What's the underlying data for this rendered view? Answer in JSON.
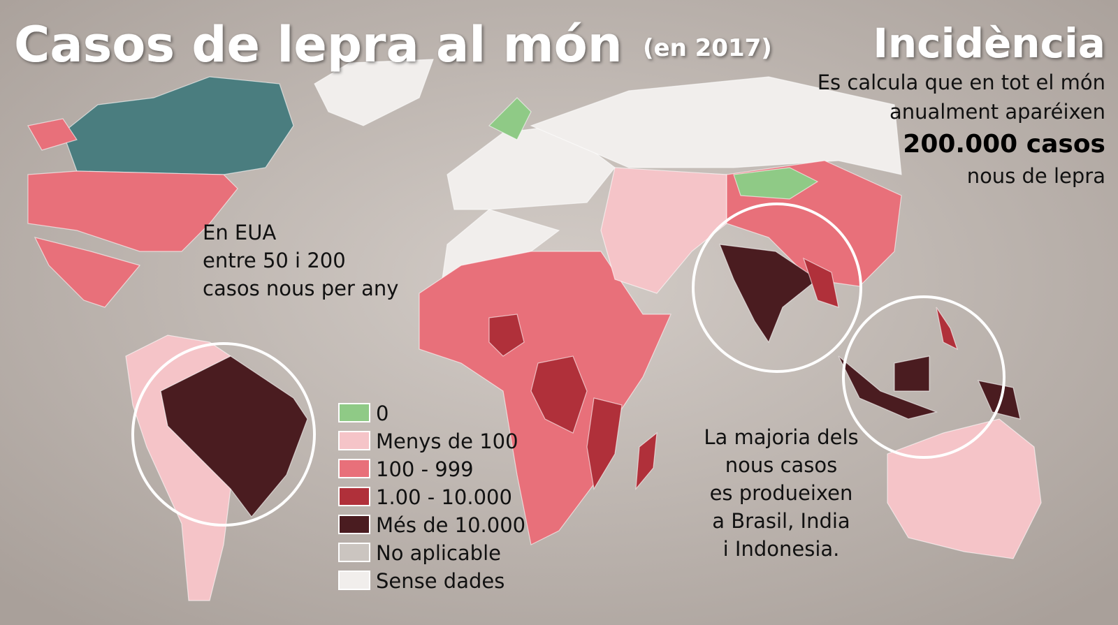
{
  "header": {
    "title": "Casos de lepra al món",
    "subtitle": "(en 2017)"
  },
  "incidence": {
    "title": "Incidència",
    "lines": [
      "Es calcula que en tot el món",
      "anualment aparéixen",
      "200.000 casos",
      "nous de lepra"
    ]
  },
  "notes": [
    {
      "lines": [
        "En EUA",
        "entre 50 i 200",
        "casos nous per any"
      ]
    },
    {
      "lines": [
        "La majoria dels",
        "nous casos",
        "es produeixen",
        "a Brasil, India",
        "i Indonesia."
      ]
    }
  ],
  "legend": {
    "items": [
      {
        "label": "0",
        "color": "#8fca86"
      },
      {
        "label": "Menys de 100",
        "color": "#f5c4c8"
      },
      {
        "label": "100 - 999",
        "color": "#e8707a"
      },
      {
        "label": "1.00 - 10.000",
        "color": "#b0303a"
      },
      {
        "label": "Més de 10.000",
        "color": "#4a1c20"
      },
      {
        "label": "No aplicable",
        "color": "#cbc5c0"
      },
      {
        "label": "Sense dades",
        "color": "#f1eeec"
      }
    ]
  }
}
